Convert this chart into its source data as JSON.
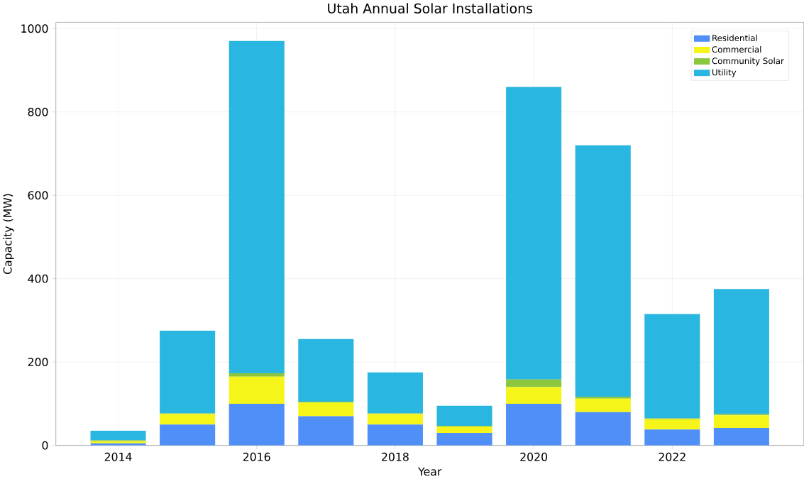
{
  "chart_data": {
    "type": "bar",
    "title": "Utah Annual Solar Installations",
    "xlabel": "Year",
    "ylabel": "Capacity (MW)",
    "stacked": true,
    "x": [
      2014,
      2015,
      2016,
      2017,
      2018,
      2019,
      2020,
      2021,
      2022,
      2023
    ],
    "series": [
      {
        "name": "Residential",
        "color": "#4f8ff7",
        "values": [
          5,
          50,
          100,
          70,
          50,
          30,
          100,
          80,
          38,
          42
        ]
      },
      {
        "name": "Commercial",
        "color": "#f5f51a",
        "values": [
          5,
          25,
          65,
          33,
          25,
          15,
          40,
          32,
          25,
          30
        ]
      },
      {
        "name": "Community Solar",
        "color": "#8cc63f",
        "values": [
          2,
          2,
          8,
          2,
          2,
          2,
          18,
          5,
          2,
          3
        ]
      },
      {
        "name": "Utility",
        "color": "#29b6e0",
        "values": [
          23,
          198,
          797,
          150,
          98,
          48,
          702,
          603,
          250,
          300
        ]
      }
    ],
    "xlim": [
      2013.1,
      2023.9
    ],
    "ylim": [
      0,
      1015
    ],
    "xticks": [
      2014,
      2016,
      2018,
      2020,
      2022
    ],
    "yticks": [
      0,
      200,
      400,
      600,
      800,
      1000
    ],
    "grid": true,
    "legend": "top right"
  }
}
